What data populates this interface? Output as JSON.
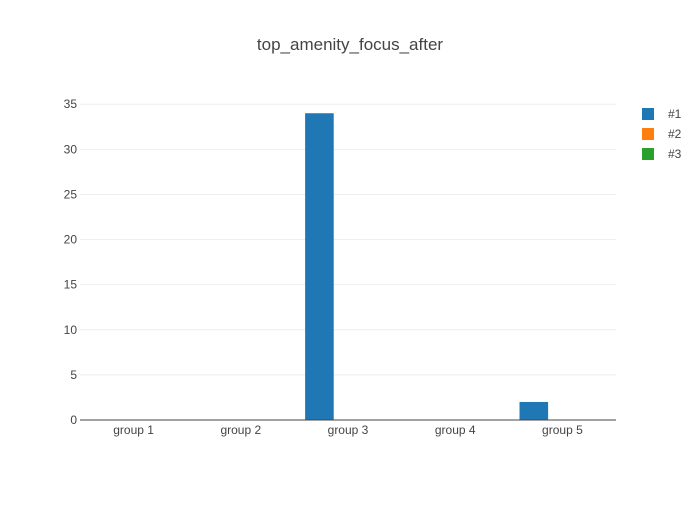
{
  "chart_data": {
    "type": "bar",
    "title": "top_amenity_focus_after",
    "xlabel": "",
    "ylabel": "",
    "categories": [
      "group 1",
      "group 2",
      "group 3",
      "group 4",
      "group 5"
    ],
    "series": [
      {
        "name": "#1",
        "color": "#1f77b4",
        "values": [
          0,
          0,
          34,
          0,
          2
        ]
      },
      {
        "name": "#2",
        "color": "#ff7f0e",
        "values": [
          0,
          0,
          0,
          0,
          0
        ]
      },
      {
        "name": "#3",
        "color": "#2ca02c",
        "values": [
          0,
          0,
          0,
          0,
          0
        ]
      }
    ],
    "ylim": [
      0,
      35.8
    ],
    "yticks": [
      0,
      5,
      10,
      15,
      20,
      25,
      30,
      35
    ],
    "grid": true,
    "legend_position": "top-right"
  }
}
